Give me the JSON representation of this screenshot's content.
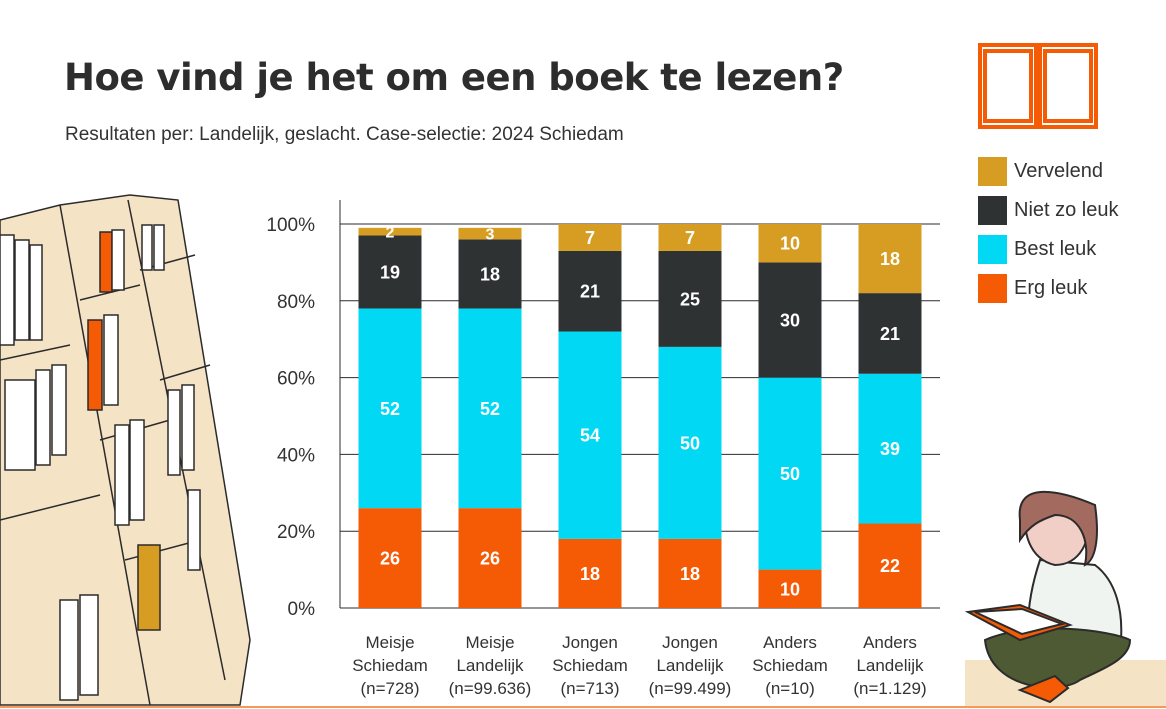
{
  "header": {
    "title": "Hoe vind je het om een boek te lezen?",
    "subtitle": "Resultaten per: Landelijk, geslacht. Case-selectie: 2024 Schiedam"
  },
  "legend": {
    "items": [
      {
        "label": "Vervelend",
        "color": "#d69d22"
      },
      {
        "label": "Niet zo leuk",
        "color": "#2f3233"
      },
      {
        "label": "Best leuk",
        "color": "#00d8f4"
      },
      {
        "label": "Erg leuk",
        "color": "#f55a05"
      }
    ]
  },
  "icons": {
    "book": "open-book-icon",
    "bookshelf": "bookshelf-illustration",
    "reader": "reading-person-illustration"
  },
  "chart_data": {
    "type": "bar",
    "stacked": true,
    "orientation": "vertical",
    "categories": [
      [
        "Meisje",
        "Schiedam",
        "(n=728)"
      ],
      [
        "Meisje",
        "Landelijk",
        "(n=99.636)"
      ],
      [
        "Jongen",
        "Schiedam",
        "(n=713)"
      ],
      [
        "Jongen",
        "Landelijk",
        "(n=99.499)"
      ],
      [
        "Anders",
        "Schiedam",
        "(n=10)"
      ],
      [
        "Anders",
        "Landelijk",
        "(n=1.129)"
      ]
    ],
    "series": [
      {
        "name": "Erg leuk",
        "color": "#f55a05",
        "values": [
          26,
          26,
          18,
          18,
          10,
          22
        ],
        "labels": [
          "26",
          "26",
          "18",
          "18",
          "10",
          "22"
        ]
      },
      {
        "name": "Best leuk",
        "color": "#00d8f4",
        "values": [
          52,
          52,
          54,
          50,
          50,
          39
        ],
        "labels": [
          "52",
          "52",
          "54",
          "50",
          "50",
          "39"
        ]
      },
      {
        "name": "Niet zo leuk",
        "color": "#2f3233",
        "values": [
          19,
          18,
          21,
          25,
          30,
          21
        ],
        "labels": [
          "19",
          "18",
          "21",
          "25",
          "30",
          "21"
        ]
      },
      {
        "name": "Vervelend",
        "color": "#d69d22",
        "values": [
          2,
          3,
          7,
          7,
          10,
          18
        ],
        "labels": [
          "2",
          "3",
          "7",
          "7",
          "10",
          "18"
        ]
      }
    ],
    "ylim": [
      0,
      100
    ],
    "yticks": [
      "0%",
      "20%",
      "40%",
      "60%",
      "80%",
      "100%"
    ],
    "grid": true,
    "legend_position": "right"
  }
}
